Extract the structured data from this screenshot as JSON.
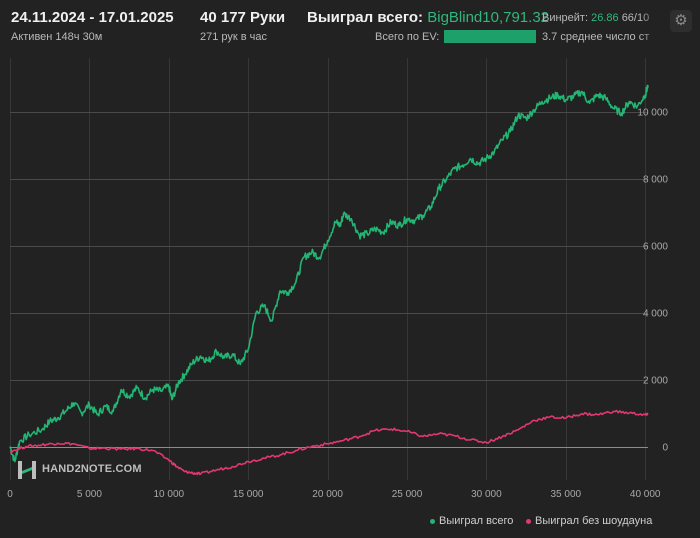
{
  "header": {
    "date_range": "24.11.2024 - 17.01.2025",
    "active_time": "Активен 148ч 30м",
    "hands": "40 177 Руки",
    "hands_per_hour": "271 рук в час",
    "won_total_label": "Выиграл всего:",
    "won_total_value": "BigBlind10,791.32",
    "ev_label": "Всего по EV:",
    "winrate_label": "Винрейт:",
    "winrate_value": "26.86",
    "winrate_extra": "66/10",
    "avg_label": "3.7 среднее число ст"
  },
  "icons": {
    "settings": "gear-icon"
  },
  "logo": {
    "text": "HAND2NOTE.COM"
  },
  "colors": {
    "background": "#222222",
    "total": "#22b573",
    "showdown": "#e0386f",
    "grid": "#3a3a3a"
  },
  "chart_data": {
    "type": "line",
    "x_ticks": [
      0,
      5000,
      10000,
      15000,
      20000,
      25000,
      30000,
      35000,
      40000
    ],
    "x_tick_labels": [
      "0",
      "5 000",
      "10 000",
      "15 000",
      "20 000",
      "25 000",
      "30 000",
      "35 000",
      "40 000"
    ],
    "y_ticks": [
      0,
      2000,
      4000,
      6000,
      8000,
      10000
    ],
    "y_tick_labels": [
      "0",
      "2 000",
      "4 000",
      "6 000",
      "8 000",
      "10 000"
    ],
    "xlim": [
      0,
      40177
    ],
    "ylim": [
      -1000,
      11600
    ],
    "grid": true,
    "legend_position": "bottom-right",
    "series": [
      {
        "name": "Выиграл всего",
        "color": "#22b573",
        "points": [
          [
            0,
            0
          ],
          [
            300,
            -450
          ],
          [
            600,
            150
          ],
          [
            1200,
            350
          ],
          [
            2000,
            500
          ],
          [
            2500,
            750
          ],
          [
            3000,
            850
          ],
          [
            3500,
            1050
          ],
          [
            4000,
            1300
          ],
          [
            4500,
            1000
          ],
          [
            5000,
            1250
          ],
          [
            5500,
            950
          ],
          [
            6000,
            1200
          ],
          [
            6500,
            1050
          ],
          [
            7000,
            1700
          ],
          [
            7500,
            1500
          ],
          [
            8000,
            1750
          ],
          [
            8500,
            1450
          ],
          [
            9000,
            1700
          ],
          [
            9500,
            1650
          ],
          [
            10000,
            1800
          ],
          [
            10200,
            1400
          ],
          [
            10600,
            1900
          ],
          [
            11000,
            2150
          ],
          [
            11500,
            2500
          ],
          [
            12000,
            2700
          ],
          [
            12500,
            2550
          ],
          [
            13000,
            2850
          ],
          [
            13500,
            2650
          ],
          [
            14000,
            2750
          ],
          [
            14500,
            2450
          ],
          [
            15000,
            2900
          ],
          [
            15500,
            4000
          ],
          [
            16000,
            4200
          ],
          [
            16500,
            3750
          ],
          [
            17000,
            4650
          ],
          [
            17500,
            4600
          ],
          [
            18000,
            4900
          ],
          [
            18500,
            5650
          ],
          [
            19000,
            5800
          ],
          [
            19500,
            5650
          ],
          [
            20000,
            6150
          ],
          [
            20500,
            6700
          ],
          [
            20800,
            6600
          ],
          [
            21000,
            6950
          ],
          [
            21500,
            6800
          ],
          [
            22000,
            6300
          ],
          [
            22500,
            6350
          ],
          [
            23000,
            6500
          ],
          [
            23500,
            6400
          ],
          [
            24000,
            6700
          ],
          [
            24500,
            6600
          ],
          [
            25000,
            6800
          ],
          [
            25500,
            6750
          ],
          [
            26000,
            6900
          ],
          [
            26500,
            7150
          ],
          [
            27000,
            7700
          ],
          [
            27500,
            8000
          ],
          [
            28000,
            8300
          ],
          [
            28500,
            8400
          ],
          [
            29000,
            8600
          ],
          [
            29500,
            8450
          ],
          [
            30000,
            8600
          ],
          [
            30500,
            8800
          ],
          [
            31000,
            9150
          ],
          [
            31500,
            9400
          ],
          [
            32000,
            9900
          ],
          [
            32500,
            9800
          ],
          [
            33000,
            10050
          ],
          [
            33500,
            10300
          ],
          [
            34000,
            10400
          ],
          [
            34500,
            10500
          ],
          [
            35000,
            10350
          ],
          [
            35500,
            10450
          ],
          [
            36000,
            10600
          ],
          [
            36500,
            10250
          ],
          [
            37000,
            10500
          ],
          [
            37500,
            10400
          ],
          [
            38000,
            10100
          ],
          [
            38500,
            9950
          ],
          [
            39000,
            10300
          ],
          [
            39500,
            10150
          ],
          [
            40000,
            10500
          ],
          [
            40177,
            10790
          ]
        ]
      },
      {
        "name": "Выиграл без шоудауна",
        "color": "#e0386f",
        "points": [
          [
            0,
            -150
          ],
          [
            1000,
            0
          ],
          [
            2000,
            50
          ],
          [
            3000,
            100
          ],
          [
            4000,
            80
          ],
          [
            5000,
            -60
          ],
          [
            6000,
            -50
          ],
          [
            7000,
            -80
          ],
          [
            8000,
            -60
          ],
          [
            9000,
            -120
          ],
          [
            10000,
            -400
          ],
          [
            10500,
            -600
          ],
          [
            11000,
            -750
          ],
          [
            11500,
            -790
          ],
          [
            12000,
            -820
          ],
          [
            13000,
            -700
          ],
          [
            14000,
            -600
          ],
          [
            15000,
            -450
          ],
          [
            16000,
            -350
          ],
          [
            17000,
            -250
          ],
          [
            18000,
            -120
          ],
          [
            19000,
            0
          ],
          [
            20000,
            80
          ],
          [
            21000,
            180
          ],
          [
            22000,
            300
          ],
          [
            23000,
            480
          ],
          [
            24000,
            520
          ],
          [
            25000,
            450
          ],
          [
            26000,
            300
          ],
          [
            27000,
            380
          ],
          [
            28000,
            320
          ],
          [
            29000,
            200
          ],
          [
            30000,
            120
          ],
          [
            31000,
            300
          ],
          [
            32000,
            500
          ],
          [
            33000,
            780
          ],
          [
            34000,
            880
          ],
          [
            35000,
            850
          ],
          [
            36000,
            980
          ],
          [
            37000,
            950
          ],
          [
            38000,
            1050
          ],
          [
            39000,
            1000
          ],
          [
            40000,
            950
          ],
          [
            40177,
            950
          ]
        ]
      }
    ]
  }
}
